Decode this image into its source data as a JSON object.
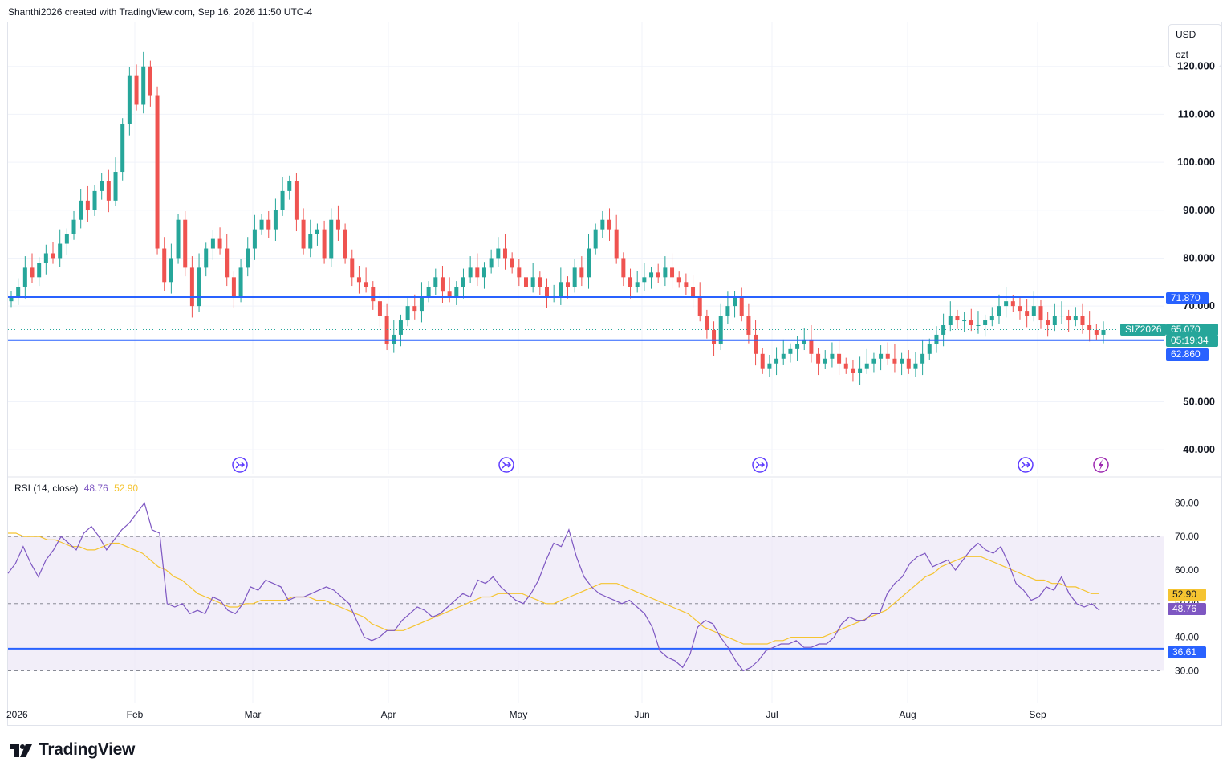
{
  "header": {
    "caption": "Shanthi2026 created with TradingView.com, Sep 16, 2026 11:50 UTC-4"
  },
  "currency": {
    "unit": "USD",
    "measure": "ozt"
  },
  "brand": {
    "name": "TradingView",
    "logo_icon": "tradingview-logo-icon"
  },
  "colors": {
    "up": "#26a69a",
    "down": "#ef5350",
    "level": "#2962ff",
    "rsi": "#7e57c2",
    "rsi_ma": "#f5c431",
    "band": "#ede7f6"
  },
  "chart_data": {
    "type": "candlestick",
    "symbol": "SIZ2026",
    "last_price": "65.070",
    "countdown": "05:19:34",
    "price_axis": {
      "ticks": [
        "120.000",
        "110.000",
        "100.000",
        "90.000",
        "80.000",
        "70.000",
        "50.000",
        "40.000"
      ],
      "ylim": [
        35,
        128
      ]
    },
    "x_labels": [
      "2026",
      "Feb",
      "Mar",
      "Apr",
      "May",
      "Jun",
      "Jul",
      "Aug",
      "Sep"
    ],
    "levels": [
      {
        "label": "71.870",
        "value": 71.87
      },
      {
        "label": "62.860",
        "value": 62.86
      }
    ],
    "events": [
      {
        "x": "Feb 1",
        "icon": "split-icon"
      },
      {
        "x": "May 1",
        "icon": "split-icon"
      },
      {
        "x": "Jul 1",
        "icon": "split-icon"
      },
      {
        "x": "Sep 1",
        "icon": "split-icon"
      },
      {
        "x": "Sep 14",
        "icon": "lightning-icon"
      }
    ],
    "close": [
      72,
      74,
      78,
      76,
      79,
      81,
      80,
      83,
      85,
      88,
      92,
      90,
      94,
      96,
      92,
      98,
      108,
      118,
      112,
      120,
      114,
      82,
      75,
      80,
      88,
      78,
      70,
      78,
      82,
      84,
      82,
      76,
      72,
      78,
      82,
      86,
      88,
      86,
      90,
      94,
      96,
      88,
      82,
      85,
      86,
      80,
      88,
      86,
      80,
      76,
      75,
      74,
      71,
      68,
      62,
      64,
      67,
      70,
      69,
      72,
      74,
      76,
      73,
      72,
      74,
      76,
      78,
      76,
      78,
      80,
      82,
      80,
      78,
      76,
      74,
      76,
      74,
      72,
      72,
      75,
      74,
      78,
      76,
      82,
      86,
      88,
      86,
      80,
      76,
      74,
      75,
      76,
      77,
      76,
      78,
      76,
      75,
      74,
      72,
      68,
      65,
      62,
      68,
      70,
      72,
      68,
      64,
      60,
      57,
      58,
      59,
      60,
      61,
      62,
      63,
      60,
      58,
      59,
      60,
      58,
      57,
      56,
      57,
      58,
      59,
      60,
      59,
      58,
      59,
      57,
      58,
      60,
      62,
      64,
      66,
      68,
      67,
      67,
      66,
      66,
      67,
      68,
      70,
      71,
      70,
      69,
      68,
      70,
      67,
      66,
      68,
      68,
      67,
      68,
      66,
      65,
      64,
      65
    ],
    "rsi": {
      "label": "RSI (14, close)",
      "value": "48.76",
      "ma_value": "52.90",
      "ticks": [
        "80.00",
        "70.00",
        "60.00",
        "50.00",
        "40.00",
        "30.00"
      ],
      "ylim": [
        27,
        82
      ],
      "band": [
        30,
        70
      ],
      "level": {
        "label": "36.61",
        "value": 36.61
      },
      "values": [
        59,
        62,
        67,
        62,
        58,
        63,
        66,
        70,
        68,
        66,
        71,
        73,
        70,
        66,
        69,
        72,
        74,
        77,
        80,
        72,
        71,
        50,
        49,
        50,
        47,
        48,
        47,
        52,
        51,
        48,
        47,
        50,
        55,
        54,
        57,
        56,
        55,
        51,
        52,
        52,
        53,
        54,
        55,
        54,
        52,
        50,
        45,
        40,
        39,
        40,
        42,
        42,
        45,
        47,
        49,
        48,
        46,
        47,
        49,
        51,
        53,
        52,
        57,
        56,
        58,
        55,
        53,
        51,
        50,
        53,
        57,
        63,
        68,
        67,
        72,
        64,
        58,
        55,
        53,
        52,
        51,
        50,
        51,
        49,
        47,
        43,
        36,
        34,
        33,
        31,
        35,
        43,
        45,
        44,
        40,
        37,
        33,
        30,
        31,
        33,
        36,
        37,
        38,
        38,
        39,
        37,
        37,
        38,
        38,
        40,
        44,
        46,
        45,
        45,
        47,
        47,
        53,
        56,
        58,
        62,
        64,
        65,
        61,
        62,
        63,
        60,
        63,
        66,
        68,
        66,
        65,
        67,
        62,
        56,
        54,
        51,
        52,
        55,
        54,
        58,
        53,
        50,
        49,
        50,
        48
      ],
      "ma": [
        71,
        71,
        70,
        70,
        70,
        69,
        69,
        68,
        67,
        67,
        66,
        66,
        67,
        68,
        68,
        67,
        66,
        65,
        63,
        61,
        60,
        58,
        57,
        55,
        53,
        52,
        51,
        50,
        49,
        49,
        50,
        50,
        51,
        51,
        51,
        51,
        52,
        52,
        52,
        51,
        51,
        50,
        49,
        48,
        47,
        46,
        44,
        43,
        42,
        42,
        42,
        43,
        44,
        45,
        46,
        47,
        48,
        49,
        50,
        51,
        52,
        52,
        53,
        53,
        53,
        53,
        52,
        51,
        50,
        50,
        51,
        52,
        53,
        54,
        55,
        56,
        56,
        56,
        55,
        54,
        53,
        52,
        51,
        50,
        49,
        48,
        47,
        45,
        43,
        42,
        41,
        40,
        39,
        38,
        38,
        38,
        38,
        39,
        39,
        40,
        40,
        40,
        40,
        40,
        41,
        42,
        43,
        44,
        45,
        46,
        47,
        48,
        50,
        52,
        54,
        56,
        58,
        59,
        61,
        62,
        63,
        64,
        64,
        64,
        63,
        62,
        61,
        60,
        59,
        58,
        57,
        57,
        56,
        56,
        55,
        55,
        54,
        53,
        53
      ]
    }
  }
}
